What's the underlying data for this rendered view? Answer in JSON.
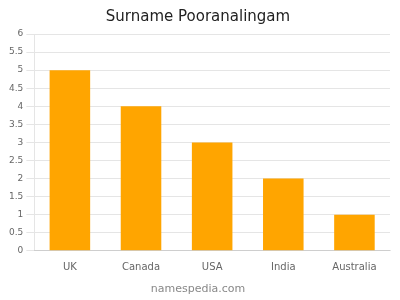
{
  "chart_data": {
    "type": "bar",
    "title": "Surname Pooranalingam",
    "categories": [
      "UK",
      "Canada",
      "USA",
      "India",
      "Australia"
    ],
    "values": [
      5,
      4,
      3,
      2,
      1
    ],
    "color": "#FFA500",
    "ylim": [
      0,
      6
    ],
    "yticks": [
      0,
      0.5,
      1,
      1.5,
      2,
      2.5,
      3,
      3.5,
      4,
      4.5,
      5,
      5.5,
      6
    ],
    "grid": true,
    "annotations": [
      "namespedia.com"
    ]
  }
}
